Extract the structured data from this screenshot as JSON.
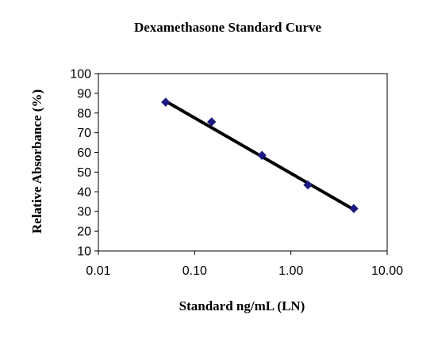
{
  "chart_data": {
    "type": "scatter",
    "title": "Dexamethasone Standard Curve",
    "xlabel": "Standard ng/mL (LN)",
    "ylabel": "Relative Absorbance  (%)",
    "xscale": "log",
    "xlim": [
      0.01,
      10.0
    ],
    "ylim": [
      10,
      100
    ],
    "x_ticks": [
      "0.01",
      "0.10",
      "1.00",
      "10.00"
    ],
    "y_ticks": [
      "10",
      "20",
      "30",
      "40",
      "50",
      "60",
      "70",
      "80",
      "90",
      "100"
    ],
    "points": [
      {
        "x": 0.05,
        "y": 85.5
      },
      {
        "x": 0.15,
        "y": 75.5
      },
      {
        "x": 0.5,
        "y": 58.5
      },
      {
        "x": 1.5,
        "y": 43.5
      },
      {
        "x": 4.5,
        "y": 31.5
      }
    ],
    "trendline": {
      "x_start": 0.05,
      "x_end": 4.5,
      "y_start": 86.0,
      "y_end": 31.0
    },
    "grid": false,
    "marker_color": "#1a1a80",
    "line_color": "#000000"
  }
}
